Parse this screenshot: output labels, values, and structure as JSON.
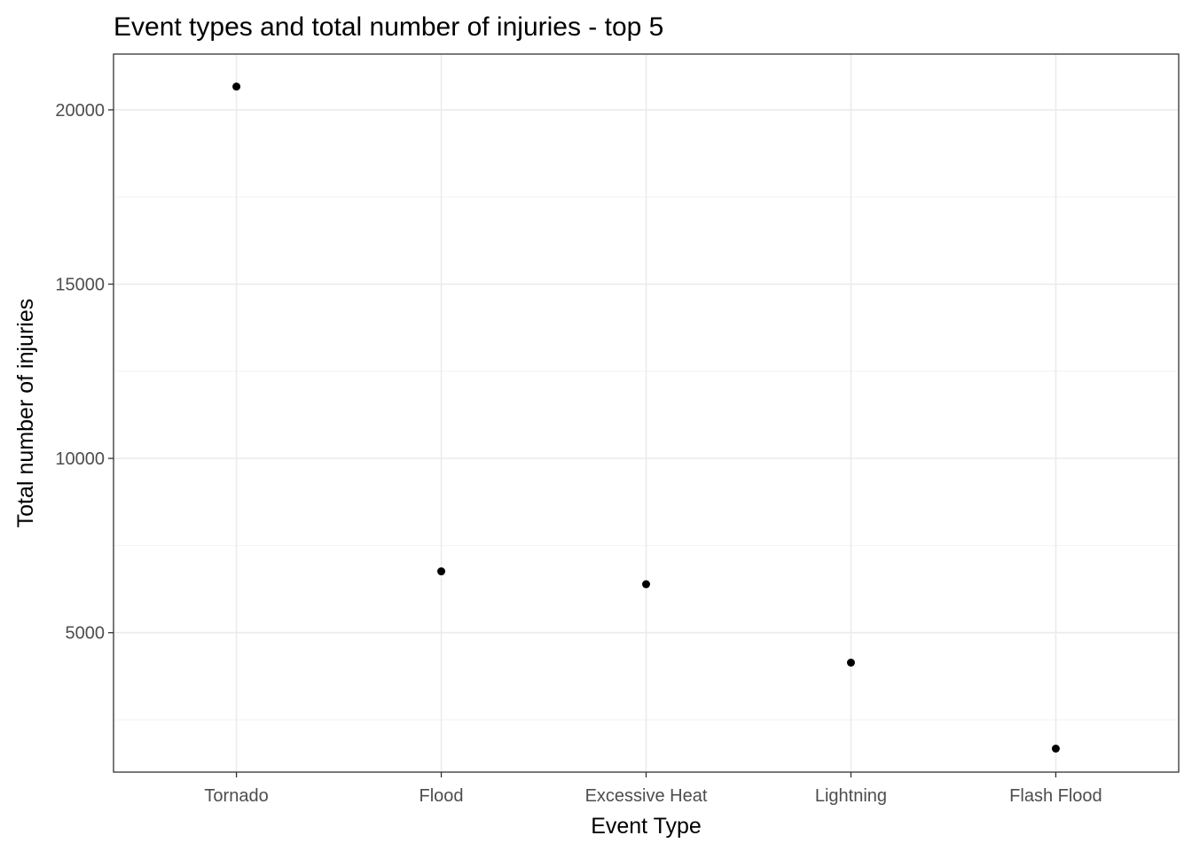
{
  "chart_data": {
    "type": "scatter",
    "title": "Event types and total number of injuries - top 5",
    "xlabel": "Event Type",
    "ylabel": "Total number of injuries",
    "categories": [
      "Tornado",
      "Flood",
      "Excessive Heat",
      "Lightning",
      "Flash Flood"
    ],
    "values": [
      20667,
      6759,
      6391,
      4141,
      1674
    ],
    "ylim": [
      1000,
      21600
    ],
    "yticks": [
      5000,
      10000,
      15000,
      20000
    ],
    "ytick_labels": [
      "5000",
      "10000",
      "15000",
      "20000"
    ],
    "grid": true,
    "legend": "none",
    "colors": {
      "point": "#000000",
      "grid_major": "#ebebeb",
      "grid_minor": "#f2f2f2",
      "panel_border": "#333333",
      "tick_label": "#4d4d4d"
    }
  }
}
